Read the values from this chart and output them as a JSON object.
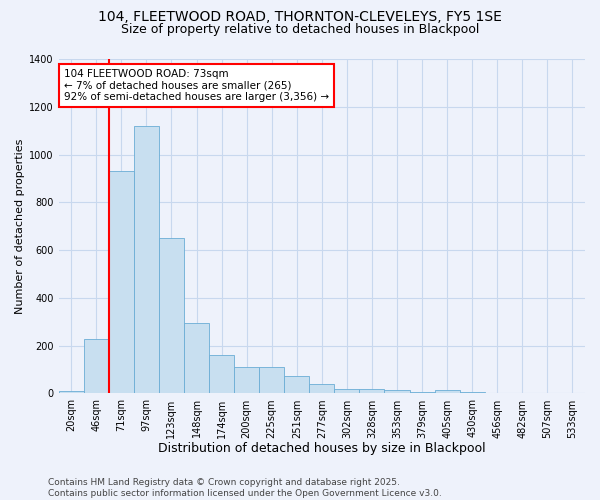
{
  "title1": "104, FLEETWOOD ROAD, THORNTON-CLEVELEYS, FY5 1SE",
  "title2": "Size of property relative to detached houses in Blackpool",
  "xlabel": "Distribution of detached houses by size in Blackpool",
  "ylabel": "Number of detached properties",
  "categories": [
    "20sqm",
    "46sqm",
    "71sqm",
    "97sqm",
    "123sqm",
    "148sqm",
    "174sqm",
    "200sqm",
    "225sqm",
    "251sqm",
    "277sqm",
    "302sqm",
    "328sqm",
    "353sqm",
    "379sqm",
    "405sqm",
    "430sqm",
    "456sqm",
    "482sqm",
    "507sqm",
    "533sqm"
  ],
  "values": [
    10,
    228,
    930,
    1120,
    650,
    295,
    162,
    112,
    112,
    75,
    38,
    18,
    18,
    15,
    8,
    15,
    5,
    2,
    2,
    0,
    2
  ],
  "bar_color": "#c8dff0",
  "bar_edge_color": "#6aadd5",
  "vline_color": "red",
  "vline_x_index": 2,
  "annotation_text": "104 FLEETWOOD ROAD: 73sqm\n← 7% of detached houses are smaller (265)\n92% of semi-detached houses are larger (3,356) →",
  "annotation_box_facecolor": "white",
  "annotation_box_edgecolor": "red",
  "ylim": [
    0,
    1400
  ],
  "yticks": [
    0,
    200,
    400,
    600,
    800,
    1000,
    1200,
    1400
  ],
  "grid_color": "#c8d8ee",
  "background_color": "#eef2fb",
  "footer": "Contains HM Land Registry data © Crown copyright and database right 2025.\nContains public sector information licensed under the Open Government Licence v3.0.",
  "title_fontsize": 10,
  "subtitle_fontsize": 9,
  "xlabel_fontsize": 9,
  "ylabel_fontsize": 8,
  "tick_fontsize": 7,
  "annot_fontsize": 7.5,
  "footer_fontsize": 6.5
}
